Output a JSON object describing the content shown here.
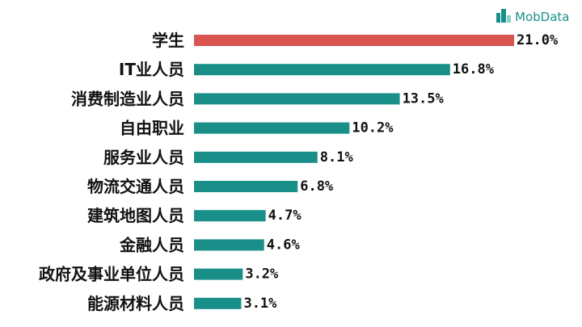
{
  "brand": {
    "name": "MobData",
    "icon": "building-icon",
    "color": "#1a8f8a"
  },
  "chart_data": {
    "type": "bar",
    "orientation": "horizontal",
    "categories": [
      "学生",
      "IT业人员",
      "消费制造业人员",
      "自由职业",
      "服务业人员",
      "物流交通人员",
      "建筑地图人员",
      "金融人员",
      "政府及事业单位人员",
      "能源材料人员"
    ],
    "values": [
      21.0,
      16.8,
      13.5,
      10.2,
      8.1,
      6.8,
      4.7,
      4.6,
      3.2,
      3.1
    ],
    "value_labels": [
      "21.0%",
      "16.8%",
      "13.5%",
      "10.2%",
      "8.1%",
      "6.8%",
      "4.7%",
      "4.6%",
      "3.2%",
      "3.1%"
    ],
    "unit": "%",
    "colors": {
      "highlight": "#d9534f",
      "default": "#1a8f8a"
    },
    "highlight_index": 0,
    "grid": false,
    "legend": "none",
    "xlim": [
      0,
      21.0
    ]
  }
}
